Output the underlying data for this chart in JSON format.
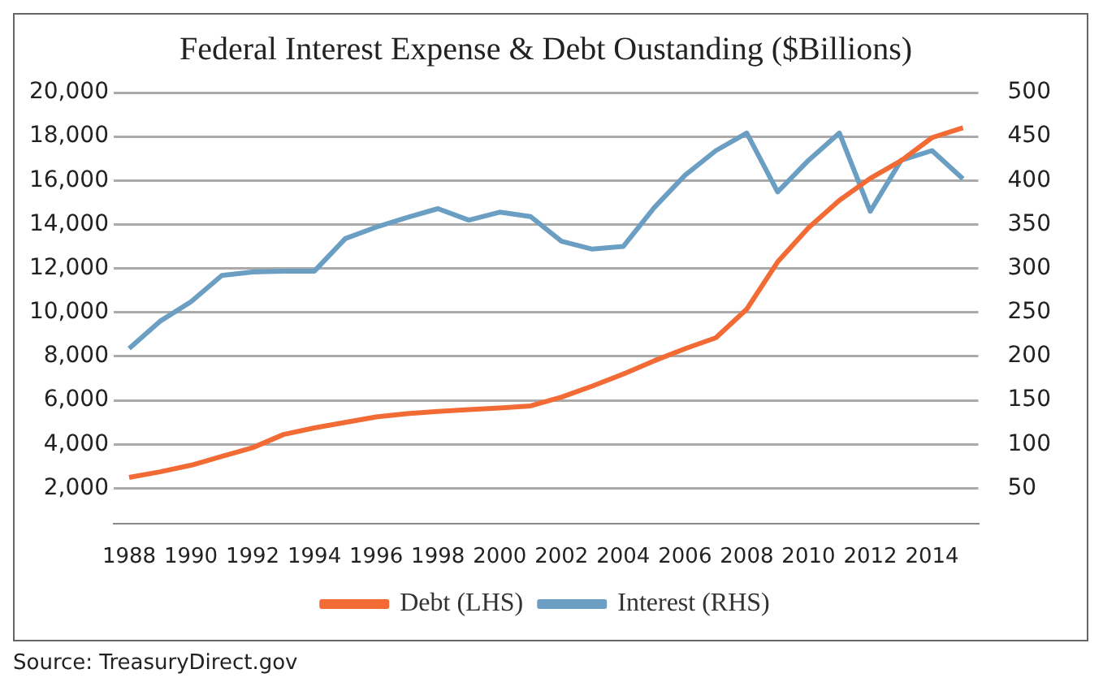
{
  "chart_data": {
    "type": "line",
    "title": "Federal Interest Expense & Debt Oustanding ($Billions)",
    "categories": [
      "1988",
      null,
      "1990",
      null,
      "1992",
      null,
      "1994",
      null,
      "1996",
      null,
      "1998",
      null,
      "2000",
      null,
      "2002",
      null,
      "2004",
      null,
      "2006",
      null,
      "2008",
      null,
      "2010",
      null,
      "2012",
      null,
      "2014",
      null
    ],
    "series": [
      {
        "name": "Debt (LHS)",
        "color": "#f26b35",
        "values": [
          2500,
          2750,
          3050,
          3450,
          3850,
          4450,
          4750,
          5000,
          5250,
          5400,
          5500,
          5580,
          5650,
          5750,
          6150,
          6650,
          7200,
          7800,
          8350,
          8850,
          10150,
          12300,
          13850,
          15100,
          16100,
          16900,
          17950,
          18400
        ]
      },
      {
        "name": "Interest (RHS)",
        "color": "#6b9ec3",
        "axis": "y2",
        "values": [
          209,
          240,
          262,
          292,
          296,
          297,
          297,
          334,
          347,
          358,
          368,
          355,
          364,
          359,
          331,
          322,
          325,
          369,
          406,
          434,
          454,
          387,
          423,
          454,
          365,
          423,
          434,
          402
        ]
      }
    ],
    "ylim": [
      400,
      20000
    ],
    "yticks": [
      {
        "value": 2000,
        "label": "2,000"
      },
      {
        "value": 4000,
        "label": "4,000"
      },
      {
        "value": 6000,
        "label": "6,000"
      },
      {
        "value": 8000,
        "label": "8,000"
      },
      {
        "value": 10000,
        "label": "10,000"
      },
      {
        "value": 12000,
        "label": "12,000"
      },
      {
        "value": 14000,
        "label": "14,000"
      },
      {
        "value": 16000,
        "label": "16,000"
      },
      {
        "value": 18000,
        "label": "18,000"
      },
      {
        "value": 20000,
        "label": "20,000"
      }
    ],
    "y2lim": [
      10,
      500
    ],
    "y2ticks": [
      50,
      100,
      150,
      200,
      250,
      300,
      350,
      400,
      450,
      500
    ],
    "grid": "y",
    "legend": "bottom",
    "marker": "none",
    "line_style": "solid",
    "annotations": [
      "Source: TreasuryDirect.gov"
    ]
  }
}
